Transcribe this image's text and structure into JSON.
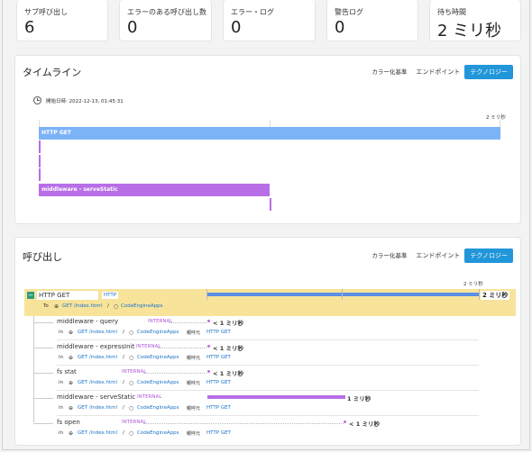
{
  "stats": [
    {
      "label": "サブ呼び出し",
      "value": "6"
    },
    {
      "label": "エラーのある呼び出し数",
      "value": "0"
    },
    {
      "label": "エラー・ログ",
      "value": "0"
    },
    {
      "label": "警告ログ",
      "value": "0"
    },
    {
      "label": "待ち時間",
      "value": "2 ミリ秒"
    }
  ],
  "segmented": {
    "color": "カラー化基準",
    "endpoint": "エンドポイント",
    "tech": "テクノロジー"
  },
  "timeline": {
    "title": "タイムライン",
    "start_label": "開始日時: 2022-12-13, 01:45:31",
    "scale_max": "2 ミリ秒",
    "bars": [
      {
        "name": "HTTP GET",
        "color": "#7cb3f7"
      },
      {
        "name": "middleware - serveStatic",
        "color": "#b76ee6"
      }
    ]
  },
  "calls": {
    "title": "呼び出し",
    "scale_max": "2 ミリ秒",
    "root": {
      "name": "HTTP GET",
      "tag": "HTTP",
      "to_label": "To",
      "path": "GET /index.html",
      "sep": "/",
      "app": "CodeEngineApps",
      "duration": "2 ミリ秒",
      "toggle": "−"
    },
    "rows": [
      {
        "name": "middleware - query",
        "tag": "INTERNAL",
        "duration": "< 1 ミリ秒",
        "in": "in",
        "path": "GET /index.html",
        "sep": "/",
        "app": "CodeEngineApps",
        "caller_label": "親呼元",
        "caller": "HTTP GET"
      },
      {
        "name": "middleware - expressInit",
        "tag": "INTERNAL",
        "duration": "< 1 ミリ秒",
        "in": "in",
        "path": "GET /index.html",
        "sep": "/",
        "app": "CodeEngineApps",
        "caller_label": "親呼元",
        "caller": "HTTP GET"
      },
      {
        "name": "fs stat",
        "tag": "INTERNAL",
        "duration": "< 1 ミリ秒",
        "in": "in",
        "path": "GET /index.html",
        "sep": "/",
        "app": "CodeEngineApps",
        "caller_label": "親呼元",
        "caller": "HTTP GET"
      },
      {
        "name": "middleware - serveStatic",
        "tag": "INTERNAL",
        "duration": "1 ミリ秒",
        "in": "in",
        "path": "GET /index.html",
        "sep": "/",
        "app": "CodeEngineApps",
        "caller_label": "親呼元",
        "caller": "HTTP GET"
      },
      {
        "name": "fs open",
        "tag": "INTERNAL",
        "duration": "< 1 ミリ秒",
        "in": "in",
        "path": "GET /index.html",
        "sep": "/",
        "app": "CodeEngineApps",
        "caller_label": "親呼元",
        "caller": "HTTP GET"
      }
    ]
  },
  "colors": {
    "accent": "#2196d9",
    "http": "#7cb3f7",
    "internal": "#b76ee6",
    "highlight": "#f7e39a"
  }
}
